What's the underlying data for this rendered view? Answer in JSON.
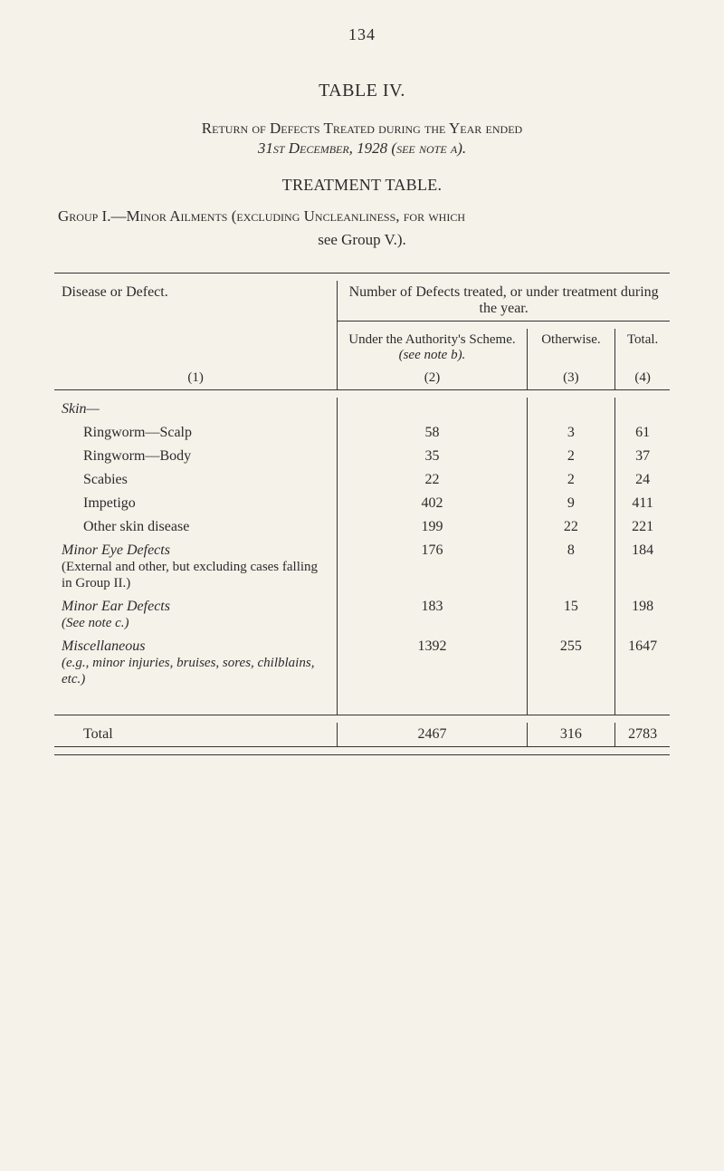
{
  "page_number": "134",
  "table_label": "TABLE IV.",
  "return_line": "Return of Defects Treated during the Year ended",
  "date_line": "31st December, 1928 (see note a).",
  "treatment_title": "TREATMENT TABLE.",
  "group_line": "Group I.—Minor Ailments (excluding Uncleanliness, for which",
  "see_group": "see Group V.).",
  "headers": {
    "disease": "Disease or Defect.",
    "super": "Number of Defects treated, or under treatment during the year.",
    "under": "Under the Authority's Scheme.",
    "under_note": "(see note b).",
    "otherwise": "Otherwise.",
    "total": "Total.",
    "c1": "(1)",
    "c2": "(2)",
    "c3": "(3)",
    "c4": "(4)"
  },
  "sections": {
    "skin": {
      "title": "Skin—",
      "rows": [
        {
          "label": "Ringworm—Scalp",
          "v2": "58",
          "v3": "3",
          "v4": "61"
        },
        {
          "label": "Ringworm—Body",
          "v2": "35",
          "v3": "2",
          "v4": "37"
        },
        {
          "label": "Scabies",
          "v2": "22",
          "v3": "2",
          "v4": "24"
        },
        {
          "label": "Impetigo",
          "v2": "402",
          "v3": "9",
          "v4": "411"
        },
        {
          "label": "Other skin disease",
          "v2": "199",
          "v3": "22",
          "v4": "221"
        }
      ]
    },
    "eye": {
      "title": "Minor Eye Defects",
      "note": "(External and other, but exclud­ing cases falling in Group II.)",
      "v2": "176",
      "v3": "8",
      "v4": "184"
    },
    "ear": {
      "title": "Minor Ear Defects",
      "note": "(See note c.)",
      "v2": "183",
      "v3": "15",
      "v4": "198"
    },
    "misc": {
      "title": "Miscellaneous",
      "note": "(e.g., minor injuries, bruises, sores, chilblains, etc.)",
      "v2": "1392",
      "v3": "255",
      "v4": "1647"
    },
    "total": {
      "label": "Total",
      "v2": "2467",
      "v3": "316",
      "v4": "2783"
    }
  },
  "style": {
    "background": "#f4f2e9",
    "border_color": "#333333",
    "font": "Georgia, Times New Roman, serif",
    "body_fontsize": 16,
    "title_fontsize": 20,
    "sub_fontsize": 15
  }
}
